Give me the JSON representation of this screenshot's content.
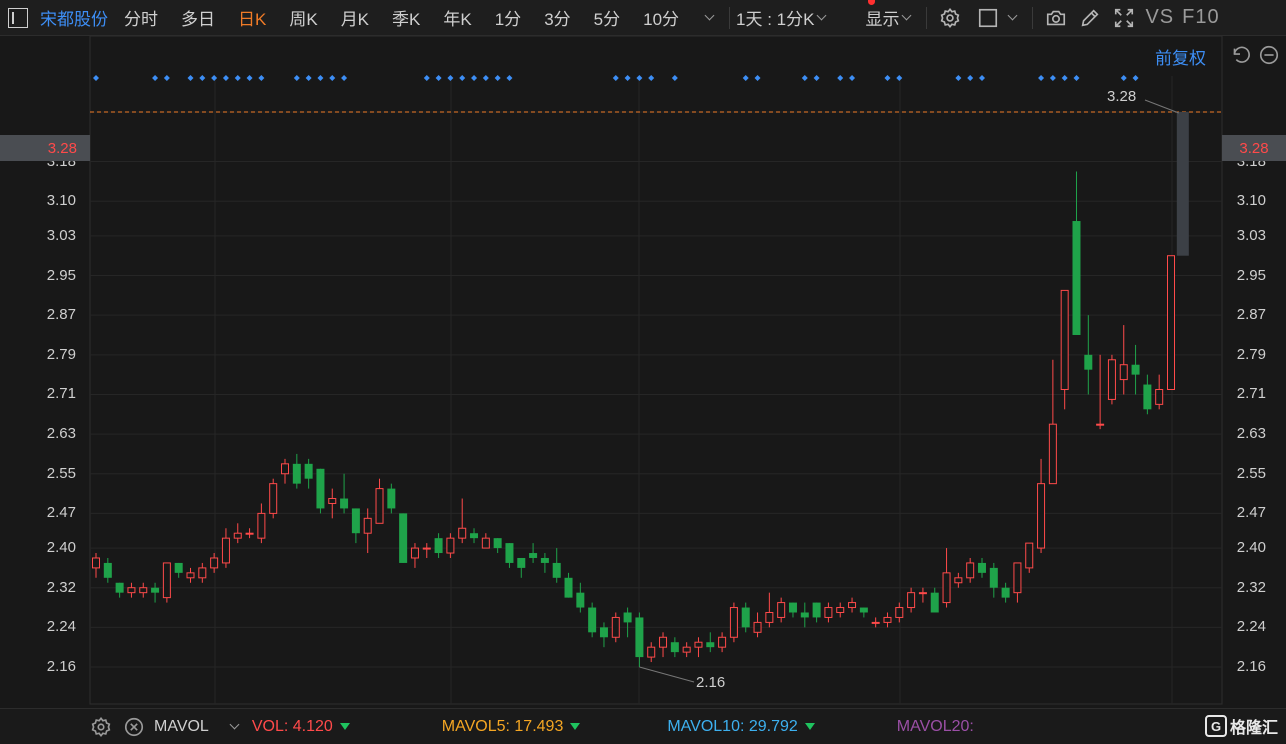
{
  "toolbar": {
    "stock_name": "宋都股份",
    "period_tabs": [
      {
        "label": "分时",
        "active": false
      },
      {
        "label": "多日",
        "active": false
      },
      {
        "label": "日K",
        "active": true
      },
      {
        "label": "周K",
        "active": false
      },
      {
        "label": "月K",
        "active": false
      },
      {
        "label": "季K",
        "active": false
      },
      {
        "label": "年K",
        "active": false
      },
      {
        "label": "1分",
        "active": false
      },
      {
        "label": "3分",
        "active": false
      },
      {
        "label": "5分",
        "active": false
      },
      {
        "label": "10分",
        "active": false
      }
    ],
    "multi_period": "1天 : 1分K",
    "display_label": "显示",
    "vs_label": "VS",
    "f10_label": "F10"
  },
  "adjust_label": "前复权",
  "colors": {
    "background": "#181818",
    "up": "#ff4a4a",
    "down": "#1fa34a",
    "accent_blue": "#3d8ef5",
    "active_tab": "#f07b27",
    "last_price_line": "#f07b27",
    "suspended_bar": "#3c4046"
  },
  "chart_data": {
    "type": "candlestick",
    "title": "",
    "xlabel": "",
    "ylabel": "",
    "ylim": [
      2.12,
      3.3
    ],
    "y_ticks": [
      "3.28",
      "3.18",
      "3.10",
      "3.03",
      "2.95",
      "2.87",
      "2.79",
      "2.71",
      "2.63",
      "2.55",
      "2.47",
      "2.40",
      "2.32",
      "2.24",
      "2.16"
    ],
    "grid": true,
    "last_price": "3.28",
    "max_label": "3.28",
    "min_label": "2.16",
    "candles": [
      [
        2.36,
        2.38,
        2.34,
        2.39
      ],
      [
        2.37,
        2.34,
        2.33,
        2.38
      ],
      [
        2.33,
        2.31,
        2.3,
        2.33
      ],
      [
        2.31,
        2.32,
        2.3,
        2.33
      ],
      [
        2.31,
        2.32,
        2.3,
        2.33
      ],
      [
        2.32,
        2.31,
        2.29,
        2.33
      ],
      [
        2.3,
        2.37,
        2.29,
        2.37
      ],
      [
        2.37,
        2.35,
        2.34,
        2.37
      ],
      [
        2.34,
        2.35,
        2.33,
        2.36
      ],
      [
        2.34,
        2.36,
        2.33,
        2.37
      ],
      [
        2.36,
        2.38,
        2.35,
        2.39
      ],
      [
        2.37,
        2.42,
        2.36,
        2.44
      ],
      [
        2.42,
        2.43,
        2.41,
        2.45
      ],
      [
        2.43,
        2.43,
        2.42,
        2.44
      ],
      [
        2.42,
        2.47,
        2.41,
        2.49
      ],
      [
        2.47,
        2.53,
        2.46,
        2.54
      ],
      [
        2.55,
        2.57,
        2.53,
        2.58
      ],
      [
        2.57,
        2.53,
        2.52,
        2.59
      ],
      [
        2.57,
        2.54,
        2.52,
        2.58
      ],
      [
        2.56,
        2.48,
        2.47,
        2.56
      ],
      [
        2.49,
        2.5,
        2.46,
        2.52
      ],
      [
        2.5,
        2.48,
        2.47,
        2.55
      ],
      [
        2.48,
        2.43,
        2.41,
        2.48
      ],
      [
        2.43,
        2.46,
        2.39,
        2.48
      ],
      [
        2.45,
        2.52,
        2.45,
        2.54
      ],
      [
        2.52,
        2.48,
        2.47,
        2.53
      ],
      [
        2.47,
        2.37,
        2.37,
        2.47
      ],
      [
        2.38,
        2.4,
        2.36,
        2.41
      ],
      [
        2.4,
        2.4,
        2.38,
        2.41
      ],
      [
        2.42,
        2.39,
        2.38,
        2.43
      ],
      [
        2.39,
        2.42,
        2.38,
        2.43
      ],
      [
        2.42,
        2.44,
        2.41,
        2.5
      ],
      [
        2.43,
        2.42,
        2.41,
        2.44
      ],
      [
        2.4,
        2.42,
        2.4,
        2.43
      ],
      [
        2.42,
        2.4,
        2.39,
        2.42
      ],
      [
        2.41,
        2.37,
        2.36,
        2.41
      ],
      [
        2.38,
        2.36,
        2.34,
        2.38
      ],
      [
        2.39,
        2.38,
        2.37,
        2.41
      ],
      [
        2.38,
        2.37,
        2.35,
        2.39
      ],
      [
        2.37,
        2.34,
        2.33,
        2.4
      ],
      [
        2.34,
        2.3,
        2.3,
        2.35
      ],
      [
        2.31,
        2.28,
        2.27,
        2.33
      ],
      [
        2.28,
        2.23,
        2.22,
        2.29
      ],
      [
        2.24,
        2.22,
        2.2,
        2.25
      ],
      [
        2.22,
        2.26,
        2.21,
        2.27
      ],
      [
        2.27,
        2.25,
        2.22,
        2.28
      ],
      [
        2.26,
        2.18,
        2.16,
        2.27
      ],
      [
        2.18,
        2.2,
        2.17,
        2.21
      ],
      [
        2.2,
        2.22,
        2.18,
        2.23
      ],
      [
        2.21,
        2.19,
        2.18,
        2.22
      ],
      [
        2.19,
        2.2,
        2.18,
        2.21
      ],
      [
        2.2,
        2.21,
        2.18,
        2.22
      ],
      [
        2.21,
        2.2,
        2.19,
        2.23
      ],
      [
        2.2,
        2.22,
        2.19,
        2.23
      ],
      [
        2.22,
        2.28,
        2.21,
        2.29
      ],
      [
        2.28,
        2.24,
        2.23,
        2.29
      ],
      [
        2.23,
        2.25,
        2.22,
        2.27
      ],
      [
        2.25,
        2.27,
        2.24,
        2.31
      ],
      [
        2.26,
        2.29,
        2.25,
        2.3
      ],
      [
        2.29,
        2.27,
        2.26,
        2.29
      ],
      [
        2.27,
        2.26,
        2.24,
        2.29
      ],
      [
        2.29,
        2.26,
        2.25,
        2.29
      ],
      [
        2.26,
        2.28,
        2.25,
        2.29
      ],
      [
        2.27,
        2.28,
        2.26,
        2.29
      ],
      [
        2.28,
        2.29,
        2.27,
        2.3
      ],
      [
        2.28,
        2.27,
        2.26,
        2.28
      ],
      [
        2.25,
        2.25,
        2.24,
        2.26
      ],
      [
        2.25,
        2.26,
        2.24,
        2.27
      ],
      [
        2.26,
        2.28,
        2.25,
        2.29
      ],
      [
        2.28,
        2.31,
        2.27,
        2.32
      ],
      [
        2.31,
        2.31,
        2.29,
        2.32
      ],
      [
        2.31,
        2.27,
        2.27,
        2.32
      ],
      [
        2.29,
        2.35,
        2.28,
        2.4
      ],
      [
        2.33,
        2.34,
        2.32,
        2.35
      ],
      [
        2.34,
        2.37,
        2.33,
        2.38
      ],
      [
        2.37,
        2.35,
        2.34,
        2.38
      ],
      [
        2.36,
        2.32,
        2.3,
        2.37
      ],
      [
        2.32,
        2.3,
        2.29,
        2.33
      ],
      [
        2.31,
        2.37,
        2.29,
        2.37
      ],
      [
        2.36,
        2.41,
        2.35,
        2.41
      ],
      [
        2.4,
        2.53,
        2.39,
        2.58
      ],
      [
        2.53,
        2.65,
        2.53,
        2.78
      ],
      [
        2.72,
        2.92,
        2.68,
        2.92
      ],
      [
        3.06,
        2.83,
        2.83,
        3.16
      ],
      [
        2.79,
        2.76,
        2.71,
        2.87
      ],
      [
        2.65,
        2.65,
        2.64,
        2.79
      ],
      [
        2.7,
        2.78,
        2.69,
        2.79
      ],
      [
        2.74,
        2.77,
        2.71,
        2.85
      ],
      [
        2.77,
        2.75,
        2.71,
        2.81
      ],
      [
        2.73,
        2.68,
        2.67,
        2.75
      ],
      [
        2.69,
        2.72,
        2.68,
        2.75
      ],
      [
        2.72,
        2.99,
        2.72,
        2.99
      ]
    ],
    "suspended": {
      "top": 3.28,
      "bottom": 2.99
    },
    "signal_marker_groups": [
      {
        "from": 0,
        "to": 0
      },
      {
        "from": 5,
        "to": 6
      },
      {
        "from": 8,
        "to": 14
      },
      {
        "from": 17,
        "to": 21
      },
      {
        "from": 28,
        "to": 35
      },
      {
        "from": 44,
        "to": 47
      },
      {
        "from": 49,
        "to": 49
      },
      {
        "from": 55,
        "to": 56
      },
      {
        "from": 60,
        "to": 61
      },
      {
        "from": 63,
        "to": 64
      },
      {
        "from": 67,
        "to": 68
      },
      {
        "from": 73,
        "to": 75
      },
      {
        "from": 80,
        "to": 83
      },
      {
        "from": 87,
        "to": 88
      }
    ]
  },
  "volume_bar": {
    "indicator_name": "MAVOL",
    "vol_label": "VOL: 4.120",
    "mavol5_label": "MAVOL5: 17.493",
    "mavol10_label": "MAVOL10: 29.792",
    "mavol20_label": "MAVOL20:",
    "vol_color": "#ff4a4a",
    "mavol5_color": "#f5a623",
    "mavol10_color": "#3db0ef",
    "mavol20_color": "#9b4fa6"
  },
  "watermark": "格隆汇"
}
